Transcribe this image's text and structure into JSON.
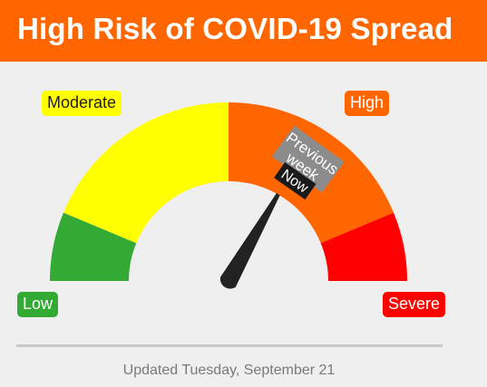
{
  "header": {
    "title": "High Risk of COVID-19 Spread"
  },
  "gauge": {
    "levels": [
      {
        "label": "Low",
        "color": "#33aa33"
      },
      {
        "label": "Moderate",
        "color": "#ffff00"
      },
      {
        "label": "High",
        "color": "#ff6600"
      },
      {
        "label": "Severe",
        "color": "#ff0000"
      }
    ],
    "needle_color": "#222222",
    "previous_week_marker": {
      "text_line1": "Previous",
      "text_line2": "week",
      "color": "#8c8c8c"
    },
    "now_marker": {
      "text": "Now",
      "color": "#1a1a1a"
    }
  },
  "footer": {
    "updated": "Updated Tuesday, September 21"
  }
}
